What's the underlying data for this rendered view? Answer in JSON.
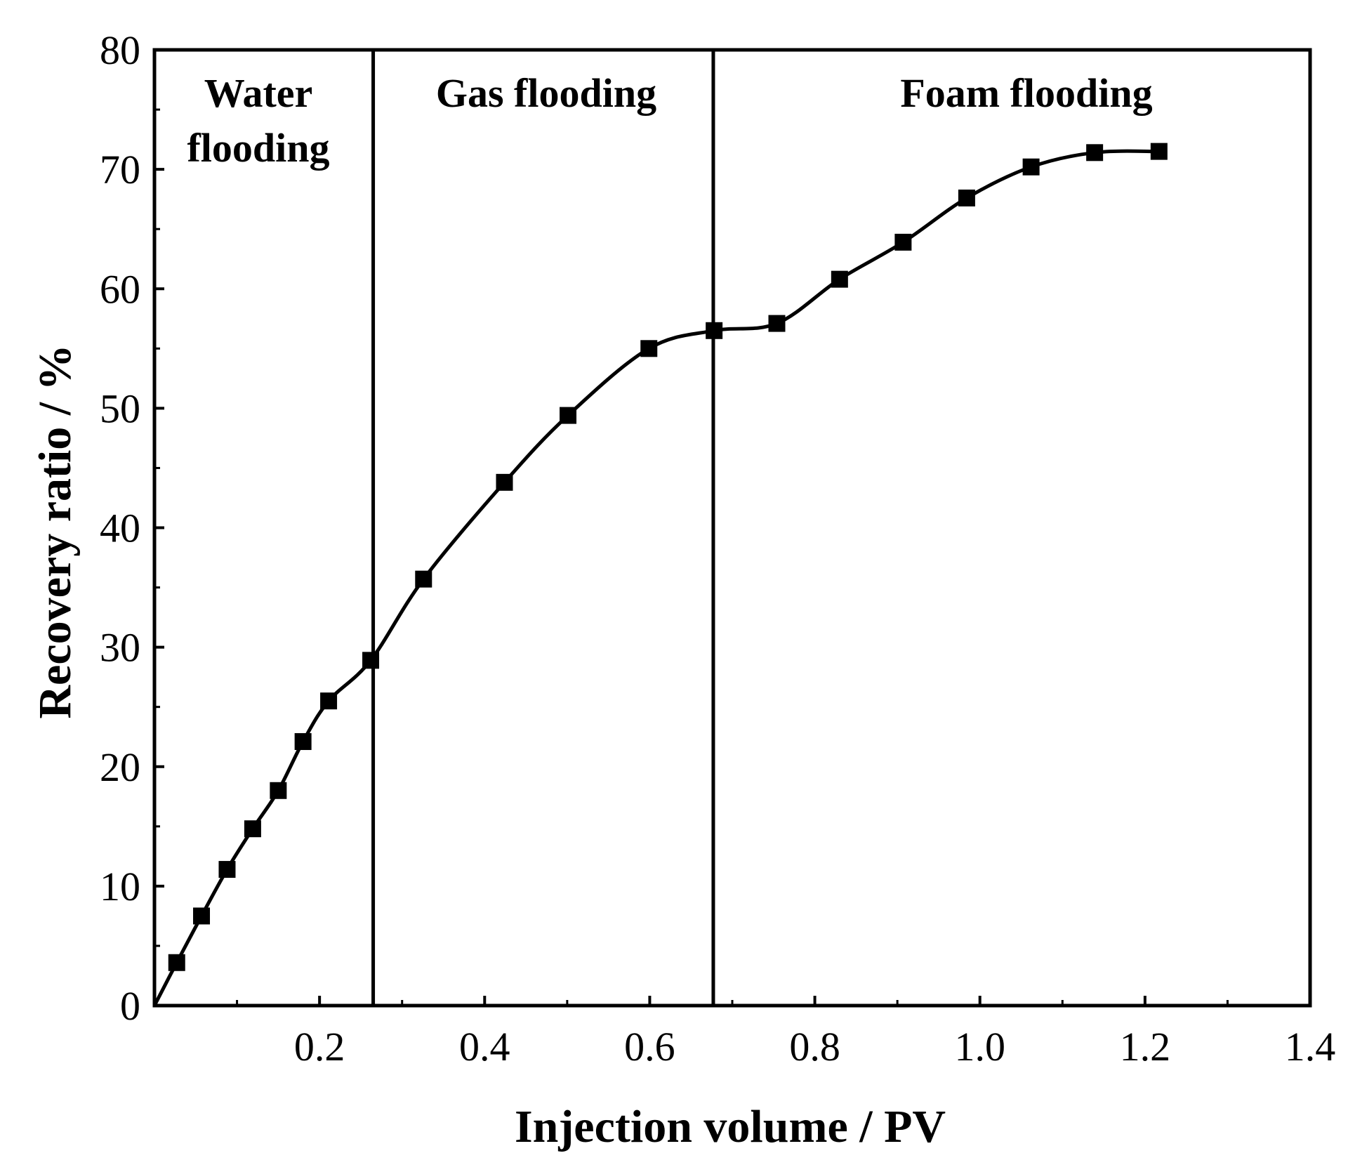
{
  "chart_data": {
    "type": "line",
    "title": "",
    "xlabel": "Injection volume / PV",
    "ylabel": "Recovery ratio / %",
    "xlim": [
      0,
      1.4
    ],
    "ylim": [
      0,
      80
    ],
    "xticks": [
      0.2,
      0.4,
      0.6,
      0.8,
      1.0,
      1.2,
      1.4
    ],
    "xtick_labels": [
      "0.2",
      "0.4",
      "0.6",
      "0.8",
      "1.0",
      "1.2",
      "1.4"
    ],
    "yticks": [
      0,
      10,
      20,
      30,
      40,
      50,
      60,
      70,
      80
    ],
    "ytick_labels": [
      "0",
      "10",
      "20",
      "30",
      "40",
      "50",
      "60",
      "70",
      "80"
    ],
    "grid": false,
    "legend": null,
    "marker": "square",
    "color": "#000000",
    "line_start": {
      "x": 0.0,
      "y": 0.0
    },
    "series": [
      {
        "name": "Recovery ratio",
        "x": [
          0.027,
          0.057,
          0.088,
          0.119,
          0.15,
          0.18,
          0.211,
          0.262,
          0.326,
          0.424,
          0.501,
          0.599,
          0.678,
          0.754,
          0.83,
          0.907,
          0.984,
          1.062,
          1.139,
          1.217
        ],
        "y": [
          3.6,
          7.5,
          11.4,
          14.8,
          18.0,
          22.1,
          25.5,
          28.9,
          35.7,
          43.8,
          49.4,
          55.0,
          56.5,
          57.1,
          60.8,
          63.9,
          67.6,
          70.2,
          71.4,
          71.5
        ]
      }
    ],
    "dividers": [
      0.265,
      0.677
    ],
    "regions": [
      {
        "lines": [
          "Water",
          "flooding"
        ]
      },
      {
        "lines": [
          "Gas flooding"
        ]
      },
      {
        "lines": [
          "Foam flooding"
        ]
      }
    ]
  }
}
